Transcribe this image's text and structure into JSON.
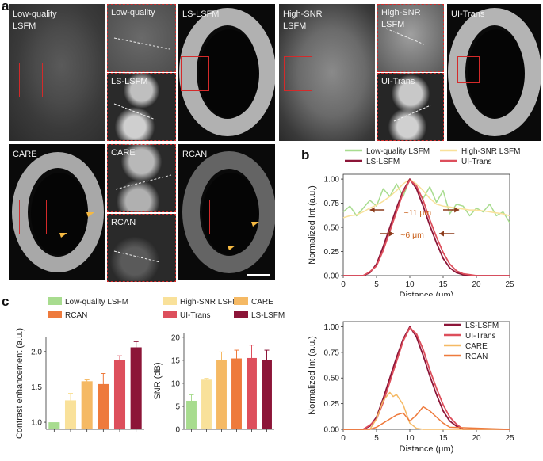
{
  "panel_letters": {
    "a": "a",
    "b": "b",
    "c": "c"
  },
  "panel_a": {
    "row1": {
      "lowq": "Low-quality\nLSFM",
      "lowq_crop": "Low-quality",
      "ls_crop": "LS-LSFM",
      "ls": "LS-LSFM",
      "highsnr": "High-SNR\nLSFM",
      "highsnr_crop": "High-SNR\nLSFM",
      "uitrans_crop": "UI-Trans",
      "uitrans": "UI-Trans"
    },
    "row2": {
      "care": "CARE",
      "care_crop": "CARE",
      "rcan_crop": "RCAN",
      "rcan": "RCAN"
    }
  },
  "colors": {
    "lowq": "#a8dc8f",
    "highsnr": "#f9e19a",
    "care": "#f5b964",
    "rcan": "#ee7a3c",
    "uitrans": "#dd4f5c",
    "lslsfm": "#8c1538",
    "arrow": "#8b3a1a"
  },
  "chart_data": [
    {
      "id": "b-top",
      "type": "line",
      "legend": [
        "Low-quality LSFM",
        "High-SNR LSFM",
        "LS-LSFM",
        "UI-Trans"
      ],
      "xlabel": "Distance (μm)",
      "ylabel": "Normalized Int (a.u.)",
      "xlim": [
        0,
        25
      ],
      "ylim": [
        0,
        1.05
      ],
      "xticks": [
        "0",
        "5",
        "10",
        "15",
        "20",
        "25"
      ],
      "yticks": [
        "0.00",
        "0.25",
        "0.50",
        "0.75",
        "1.00"
      ],
      "annotations": [
        "~11 μm",
        "~6 μm"
      ],
      "series": [
        {
          "name": "Low-quality LSFM",
          "x": [
            0,
            1,
            2,
            3,
            4,
            5,
            6,
            7,
            8,
            9,
            10,
            11,
            12,
            13,
            14,
            15,
            16,
            17,
            18,
            19,
            20,
            21,
            22,
            23,
            24,
            25
          ],
          "y": [
            0.66,
            0.72,
            0.62,
            0.7,
            0.78,
            0.72,
            0.9,
            0.82,
            0.95,
            0.82,
            1.0,
            0.9,
            0.8,
            0.92,
            0.76,
            0.88,
            0.64,
            0.74,
            0.72,
            0.62,
            0.7,
            0.66,
            0.74,
            0.62,
            0.66,
            0.55
          ]
        },
        {
          "name": "High-SNR LSFM",
          "x": [
            0,
            1,
            2,
            3,
            4,
            5,
            6,
            7,
            8,
            9,
            10,
            11,
            12,
            13,
            14,
            15,
            16,
            17,
            18,
            19,
            20,
            21,
            22,
            23,
            24,
            25
          ],
          "y": [
            0.6,
            0.62,
            0.63,
            0.66,
            0.7,
            0.73,
            0.77,
            0.82,
            0.88,
            0.95,
            1.0,
            0.95,
            0.88,
            0.8,
            0.74,
            0.72,
            0.71,
            0.7,
            0.69,
            0.68,
            0.68,
            0.67,
            0.66,
            0.65,
            0.64,
            0.62
          ]
        },
        {
          "name": "LS-LSFM",
          "x": [
            0,
            3,
            4,
            5,
            6,
            7,
            8,
            9,
            10,
            11,
            12,
            13,
            14,
            15,
            16,
            17,
            18,
            19,
            20,
            25
          ],
          "y": [
            0,
            0,
            0.03,
            0.12,
            0.3,
            0.5,
            0.7,
            0.88,
            1.0,
            0.9,
            0.72,
            0.52,
            0.34,
            0.18,
            0.08,
            0.03,
            0.01,
            0.0,
            0,
            0
          ]
        },
        {
          "name": "UI-Trans",
          "x": [
            0,
            3,
            4,
            5,
            6,
            7,
            8,
            9,
            10,
            11,
            12,
            13,
            14,
            15,
            16,
            17,
            18,
            19,
            20,
            25
          ],
          "y": [
            0,
            0,
            0.04,
            0.1,
            0.26,
            0.46,
            0.66,
            0.86,
            0.99,
            0.93,
            0.78,
            0.58,
            0.4,
            0.24,
            0.12,
            0.05,
            0.02,
            0.01,
            0,
            0
          ]
        }
      ]
    },
    {
      "id": "b-bottom",
      "type": "line",
      "legend": [
        "LS-LSFM",
        "UI-Trans",
        "CARE",
        "RCAN"
      ],
      "xlabel": "Distance (μm)",
      "ylabel": "Normalized Int (a.u.)",
      "xlim": [
        0,
        25
      ],
      "ylim": [
        0,
        1.05
      ],
      "xticks": [
        "0",
        "5",
        "10",
        "15",
        "20",
        "25"
      ],
      "yticks": [
        "0.00",
        "0.25",
        "0.50",
        "0.75",
        "1.00"
      ],
      "series": [
        {
          "name": "LS-LSFM",
          "x": [
            0,
            3,
            4,
            5,
            6,
            7,
            8,
            9,
            10,
            11,
            12,
            13,
            14,
            15,
            16,
            17,
            18,
            25
          ],
          "y": [
            0,
            0,
            0.03,
            0.12,
            0.3,
            0.5,
            0.7,
            0.88,
            1.0,
            0.9,
            0.72,
            0.52,
            0.34,
            0.18,
            0.08,
            0.03,
            0,
            0
          ]
        },
        {
          "name": "UI-Trans",
          "x": [
            0,
            3,
            4,
            5,
            6,
            7,
            8,
            9,
            10,
            11,
            12,
            13,
            14,
            15,
            16,
            17,
            18,
            25
          ],
          "y": [
            0,
            0,
            0.04,
            0.1,
            0.26,
            0.46,
            0.66,
            0.86,
            0.99,
            0.93,
            0.78,
            0.58,
            0.4,
            0.24,
            0.12,
            0.05,
            0,
            0
          ]
        },
        {
          "name": "CARE",
          "x": [
            0,
            4,
            5,
            6,
            7,
            7.5,
            8,
            9,
            10,
            11,
            12,
            13,
            14,
            15,
            25
          ],
          "y": [
            0,
            0,
            0.1,
            0.28,
            0.36,
            0.32,
            0.34,
            0.24,
            0.06,
            0.01,
            0,
            0,
            0,
            0,
            0
          ]
        },
        {
          "name": "RCAN",
          "x": [
            0,
            4,
            5,
            6,
            7,
            8,
            9,
            10,
            11,
            12,
            13,
            14,
            15,
            16,
            25
          ],
          "y": [
            0,
            0,
            0.02,
            0.06,
            0.1,
            0.14,
            0.16,
            0.08,
            0.14,
            0.22,
            0.18,
            0.12,
            0.06,
            0.02,
            0
          ]
        }
      ]
    },
    {
      "id": "c-left",
      "type": "bar",
      "ylabel": "Contrast enhancement (a.u.)",
      "ylim": [
        0.9,
        2.2
      ],
      "yticks": [
        "1.0",
        "1.5",
        "2.0"
      ],
      "categories": [
        "Low-quality LSFM",
        "High-SNR LSFM",
        "CARE",
        "RCAN",
        "UI-Trans",
        "LS-LSFM"
      ],
      "values": [
        1.0,
        1.31,
        1.58,
        1.54,
        1.88,
        2.06
      ],
      "errors": [
        0.0,
        0.1,
        0.02,
        0.15,
        0.06,
        0.08
      ]
    },
    {
      "id": "c-right",
      "type": "bar",
      "ylabel": "SNR (dB)",
      "ylim": [
        0,
        21
      ],
      "yticks": [
        "0",
        "5",
        "10",
        "15",
        "20"
      ],
      "categories": [
        "Low-quality LSFM",
        "High-SNR LSFM",
        "CARE",
        "RCAN",
        "UI-Trans",
        "LS-LSFM"
      ],
      "values": [
        6.2,
        10.8,
        15.0,
        15.4,
        15.5,
        15.0
      ],
      "errors": [
        1.3,
        0.3,
        1.8,
        1.8,
        2.8,
        2.2
      ]
    }
  ],
  "legend_c": [
    "Low-quality LSFM",
    "RCAN",
    "High-SNR  LSFM",
    "UI-Trans",
    "CARE",
    "LS-LSFM"
  ]
}
